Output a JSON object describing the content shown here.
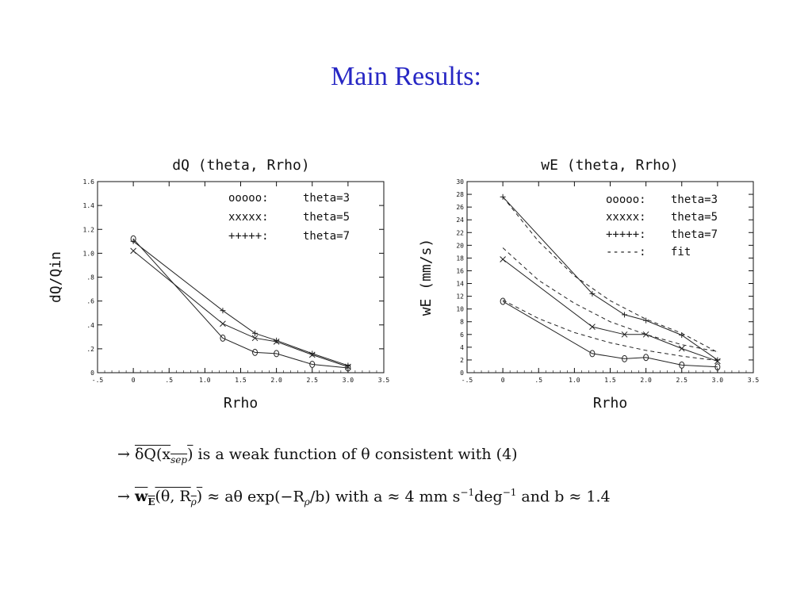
{
  "slide": {
    "title": "Main Results:"
  },
  "bullets": [
    {
      "arrow": "→",
      "overlined": "δQ(x_sep)",
      "overlined_main": "δQ(x",
      "overlined_sub": "sep",
      "overlined_close": ")",
      "text": " is a weak function of θ consistent with (4)"
    },
    {
      "arrow": "→",
      "overlined_main": "w",
      "overlined_sub": "E",
      "overlined_args": "(θ, R",
      "overlined_args_sub": "ρ",
      "overlined_close": ")",
      "rel1": " ≈ aθ exp(−R",
      "rel1_sub": "ρ",
      "rel1_end": "/b)  with  a ≈ 4 mm s",
      "sup1": "−1",
      "deg": "deg",
      "sup2": "−1",
      "tail": "  and  b ≈ 1.4"
    }
  ],
  "chart_data": [
    {
      "type": "line",
      "title": "dQ (theta, Rrho)",
      "xlabel": "Rrho",
      "ylabel": "dQ/Qin",
      "xlim": [
        -0.5,
        3.5
      ],
      "ylim": [
        0,
        1.6
      ],
      "x_ticks": [
        -0.5,
        0,
        0.5,
        1.0,
        1.5,
        2.0,
        2.5,
        3.0,
        3.5
      ],
      "x_tick_labels": [
        "-.5",
        "0",
        ".5",
        "1.0",
        "1.5",
        "2.0",
        "2.5",
        "3.0",
        "3.5"
      ],
      "y_ticks": [
        0,
        0.2,
        0.4,
        0.6,
        0.8,
        1.0,
        1.2,
        1.4,
        1.6
      ],
      "y_tick_labels": [
        "0",
        ".2",
        ".4",
        ".6",
        ".8",
        "1.0",
        "1.2",
        "1.4",
        "1.6"
      ],
      "grid": false,
      "legend_position": "top-right",
      "series": [
        {
          "name": "theta=3",
          "legend": "ooooo: theta=3",
          "marker": "o",
          "style": "solid",
          "x": [
            0,
            1.25,
            1.7,
            2.0,
            2.5,
            3.0
          ],
          "y": [
            1.12,
            0.29,
            0.17,
            0.16,
            0.07,
            0.04
          ]
        },
        {
          "name": "theta=5",
          "legend": "xxxxx: theta=5",
          "marker": "x",
          "style": "solid",
          "x": [
            0,
            1.25,
            1.7,
            2.0,
            2.5,
            3.0
          ],
          "y": [
            1.02,
            0.41,
            0.29,
            0.26,
            0.15,
            0.05
          ]
        },
        {
          "name": "theta=7",
          "legend": "+++++: theta=7",
          "marker": "+",
          "style": "solid",
          "x": [
            0,
            1.25,
            1.7,
            2.0,
            2.5,
            3.0
          ],
          "y": [
            1.1,
            0.52,
            0.33,
            0.27,
            0.16,
            0.06
          ]
        }
      ]
    },
    {
      "type": "line",
      "title": "wE (theta, Rrho)",
      "xlabel": "Rrho",
      "ylabel": "wE (mm/s)",
      "xlim": [
        -0.5,
        3.5
      ],
      "ylim": [
        0,
        30
      ],
      "x_ticks": [
        -0.5,
        0,
        0.5,
        1.0,
        1.5,
        2.0,
        2.5,
        3.0,
        3.5
      ],
      "x_tick_labels": [
        "-.5",
        "0",
        ".5",
        "1.0",
        "1.5",
        "2.0",
        "2.5",
        "3.0",
        "3.5"
      ],
      "y_ticks": [
        0,
        2,
        4,
        6,
        8,
        10,
        12,
        14,
        16,
        18,
        20,
        22,
        24,
        26,
        28,
        30
      ],
      "y_tick_labels": [
        "0",
        "2",
        "4",
        "6",
        "8",
        "10",
        "12",
        "14",
        "16",
        "18",
        "20",
        "22",
        "24",
        "26",
        "28",
        "30"
      ],
      "grid": false,
      "legend_position": "top-right",
      "series": [
        {
          "name": "theta=3",
          "legend": "ooooo: theta=3",
          "marker": "o",
          "style": "solid",
          "x": [
            0,
            1.25,
            1.7,
            2.0,
            2.5,
            3.0
          ],
          "y": [
            11.2,
            3.0,
            2.2,
            2.4,
            1.2,
            0.9
          ]
        },
        {
          "name": "theta=5",
          "legend": "xxxxx: theta=5",
          "marker": "x",
          "style": "solid",
          "x": [
            0,
            1.25,
            1.7,
            2.0,
            2.5,
            3.0
          ],
          "y": [
            17.8,
            7.2,
            6.0,
            6.0,
            3.8,
            1.8
          ]
        },
        {
          "name": "theta=7",
          "legend": "+++++: theta=7",
          "marker": "+",
          "style": "solid",
          "x": [
            0,
            1.25,
            1.7,
            2.0,
            2.5,
            3.0
          ],
          "y": [
            27.6,
            12.4,
            9.1,
            8.2,
            5.9,
            2.0
          ]
        },
        {
          "name": "fit",
          "legend": "-----: fit",
          "marker": "none",
          "style": "dashed",
          "x": [
            0,
            0.5,
            1.0,
            1.5,
            2.0,
            2.5,
            3.0
          ],
          "y": [
            11.4,
            8.5,
            6.3,
            4.7,
            3.5,
            2.6,
            1.9
          ]
        },
        {
          "name": "fit",
          "legend": "",
          "marker": "none",
          "style": "dashed",
          "x": [
            0,
            0.5,
            1.0,
            1.5,
            2.0,
            2.5,
            3.0
          ],
          "y": [
            19.6,
            14.5,
            10.9,
            8.0,
            6.0,
            4.4,
            3.3
          ]
        },
        {
          "name": "fit",
          "legend": "",
          "marker": "none",
          "style": "dashed",
          "x": [
            0,
            0.5,
            1.0,
            1.5,
            2.0,
            2.5,
            3.0
          ],
          "y": [
            27.6,
            20.6,
            15.2,
            11.3,
            8.4,
            6.2,
            3.2
          ]
        }
      ]
    }
  ]
}
